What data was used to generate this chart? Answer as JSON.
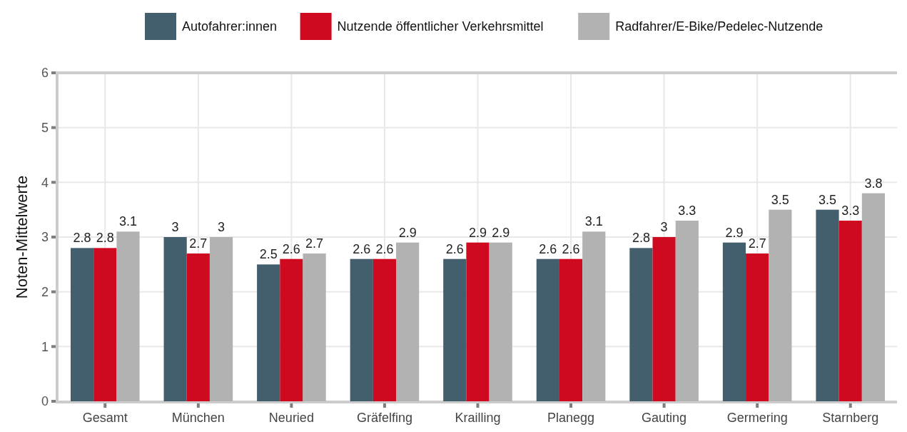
{
  "chart_data": {
    "type": "bar",
    "ylabel": "Noten-Mittelwerte",
    "categories": [
      "Gesamt",
      "München",
      "Neuried",
      "Gräfelfing",
      "Krailling",
      "Planegg",
      "Gauting",
      "Germering",
      "Starnberg"
    ],
    "series": [
      {
        "name": "Autofahrer:innen",
        "color": "#435f6d",
        "values": [
          2.8,
          3,
          2.5,
          2.6,
          2.6,
          2.6,
          2.8,
          2.9,
          3.5
        ]
      },
      {
        "name": "Nutzende öffentlicher Verkehrsmittel",
        "color": "#cf0a20",
        "values": [
          2.8,
          2.7,
          2.6,
          2.6,
          2.9,
          2.6,
          3,
          2.7,
          3.3
        ]
      },
      {
        "name": "Radfahrer/E-Bike/Pedelec-Nutzende",
        "color": "#b2b2b2",
        "values": [
          3.1,
          3,
          2.7,
          2.9,
          2.9,
          3.1,
          3.3,
          3.5,
          3.8
        ]
      }
    ],
    "ylim": [
      0,
      6
    ],
    "yticks": [
      0,
      1,
      2,
      3,
      4,
      5,
      6
    ],
    "grid": true,
    "legend": "top",
    "data_labels": true
  }
}
